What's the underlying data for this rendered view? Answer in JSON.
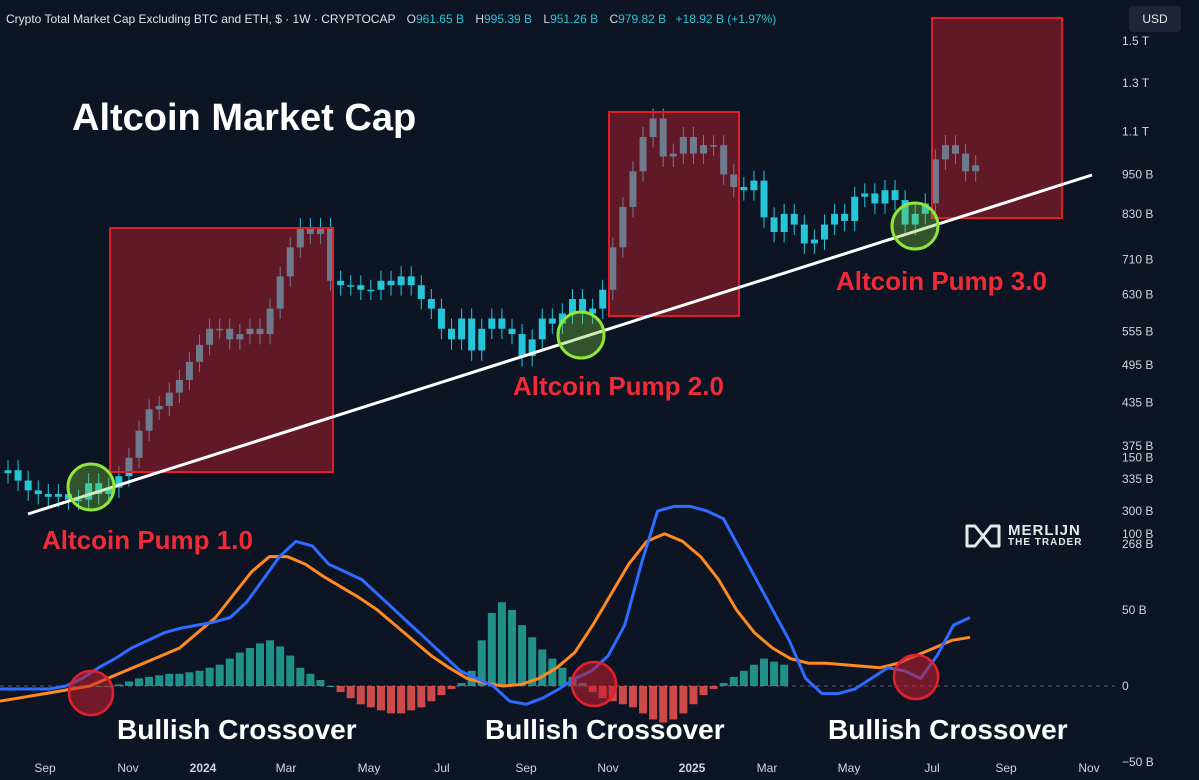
{
  "header": {
    "symbol": "Crypto Total Market Cap Excluding BTC and ETH, $ · 1W · CRYPTOCAP",
    "open_label": "O",
    "open": "961.65 B",
    "high_label": "H",
    "high": "995.39 B",
    "low_label": "L",
    "low": "951.26 B",
    "close_label": "C",
    "close": "979.82 B",
    "change": "+18.92 B (+1.97%)"
  },
  "currency_button": "USD",
  "title": "Altcoin Market Cap",
  "annotations": {
    "pump1": "Altcoin Pump 1.0",
    "pump2": "Altcoin Pump 2.0",
    "pump3": "Altcoin Pump 3.0",
    "crossover": "Bullish Crossover"
  },
  "logo": {
    "line1": "MERLIJN",
    "line2": "THE TRADER"
  },
  "colors": {
    "background": "#0d1424",
    "candle": "#26c6da",
    "trendline": "#ffffff",
    "pump_box": "#e11d2a",
    "pump_text": "#ef2b38",
    "support_circle": "#8ee63a",
    "macd_line": "#2f6bff",
    "signal_line": "#ff8a1f",
    "hist_pos": "#26a69a",
    "hist_neg": "#ef5350"
  },
  "chart_data": {
    "type": "candlestick",
    "title": "Crypto Total Market Cap Excluding BTC and ETH, $ · 1W · CRYPTOCAP",
    "x_ticks": [
      "Sep",
      "Nov",
      "2024",
      "Mar",
      "May",
      "Jul",
      "Sep",
      "Nov",
      "2025",
      "Mar",
      "May",
      "Jul",
      "Sep",
      "Nov"
    ],
    "y_ticks": [
      "1.5 T",
      "1.3 T",
      "1.1 T",
      "950 B",
      "830 B",
      "710 B",
      "630 B",
      "555 B",
      "495 B",
      "435 B",
      "375 B",
      "335 B",
      "300 B",
      "268 B"
    ],
    "y_tick_values": [
      1500,
      1300,
      1100,
      950,
      830,
      710,
      630,
      555,
      495,
      435,
      375,
      335,
      300,
      268
    ],
    "y_scale": "log",
    "weekly_close_billions": [
      345,
      333,
      322,
      318,
      315,
      318,
      312,
      312,
      330,
      318,
      325,
      338,
      360,
      395,
      425,
      430,
      450,
      470,
      500,
      530,
      560,
      560,
      540,
      550,
      560,
      550,
      600,
      670,
      740,
      790,
      775,
      790,
      660,
      650,
      650,
      640,
      640,
      660,
      650,
      670,
      650,
      620,
      600,
      560,
      540,
      580,
      520,
      560,
      580,
      560,
      550,
      510,
      540,
      580,
      570,
      590,
      620,
      590,
      600,
      640,
      740,
      850,
      960,
      1080,
      1150,
      1010,
      1020,
      1080,
      1020,
      1050,
      1050,
      950,
      910,
      900,
      930,
      820,
      780,
      830,
      800,
      750,
      760,
      800,
      830,
      810,
      880,
      890,
      860,
      900,
      870,
      800,
      830,
      860,
      1000,
      1050,
      1020,
      960,
      980
    ],
    "macd_ticks": [
      "150 B",
      "100 B",
      "50 B",
      "0",
      "−50 B"
    ],
    "macd_tick_values": [
      150,
      100,
      50,
      0,
      -50
    ],
    "macd_line": [
      -2,
      -2,
      -2,
      -2,
      0,
      5,
      12,
      18,
      25,
      30,
      35,
      38,
      40,
      42,
      45,
      55,
      70,
      85,
      95,
      92,
      80,
      75,
      70,
      60,
      50,
      40,
      30,
      20,
      10,
      5,
      0,
      -10,
      -12,
      -8,
      -2,
      5,
      10,
      20,
      40,
      80,
      115,
      118,
      118,
      115,
      110,
      90,
      70,
      50,
      30,
      5,
      -5,
      -5,
      -2,
      5,
      12,
      10,
      5,
      20,
      40,
      45
    ],
    "signal_line": [
      -10,
      -8,
      -6,
      -4,
      -2,
      0,
      5,
      10,
      15,
      20,
      25,
      35,
      45,
      60,
      75,
      85,
      85,
      80,
      72,
      65,
      58,
      50,
      40,
      30,
      20,
      12,
      5,
      2,
      0,
      1,
      5,
      12,
      22,
      40,
      60,
      80,
      95,
      100,
      95,
      85,
      70,
      50,
      35,
      25,
      18,
      15,
      15,
      14,
      13,
      12,
      15,
      20,
      25,
      30,
      32
    ],
    "macd_histogram": [
      0,
      0,
      0,
      1,
      3,
      5,
      6,
      7,
      8,
      8,
      9,
      10,
      12,
      14,
      18,
      22,
      25,
      28,
      30,
      26,
      20,
      12,
      8,
      4,
      0,
      -4,
      -8,
      -12,
      -14,
      -16,
      -18,
      -18,
      -16,
      -14,
      -10,
      -6,
      -2,
      2,
      10,
      30,
      48,
      55,
      50,
      40,
      32,
      24,
      18,
      12,
      6,
      2,
      -4,
      -8,
      -10,
      -12,
      -14,
      -18,
      -22,
      -24,
      -22,
      -18,
      -12,
      -6,
      -2,
      2,
      6,
      10,
      14,
      18,
      16,
      14
    ],
    "macd_histogram_start_week": 8,
    "pump_zones": [
      {
        "label": "Altcoin Pump 1.0"
      },
      {
        "label": "Altcoin Pump 2.0"
      },
      {
        "label": "Altcoin Pump 3.0"
      }
    ]
  }
}
